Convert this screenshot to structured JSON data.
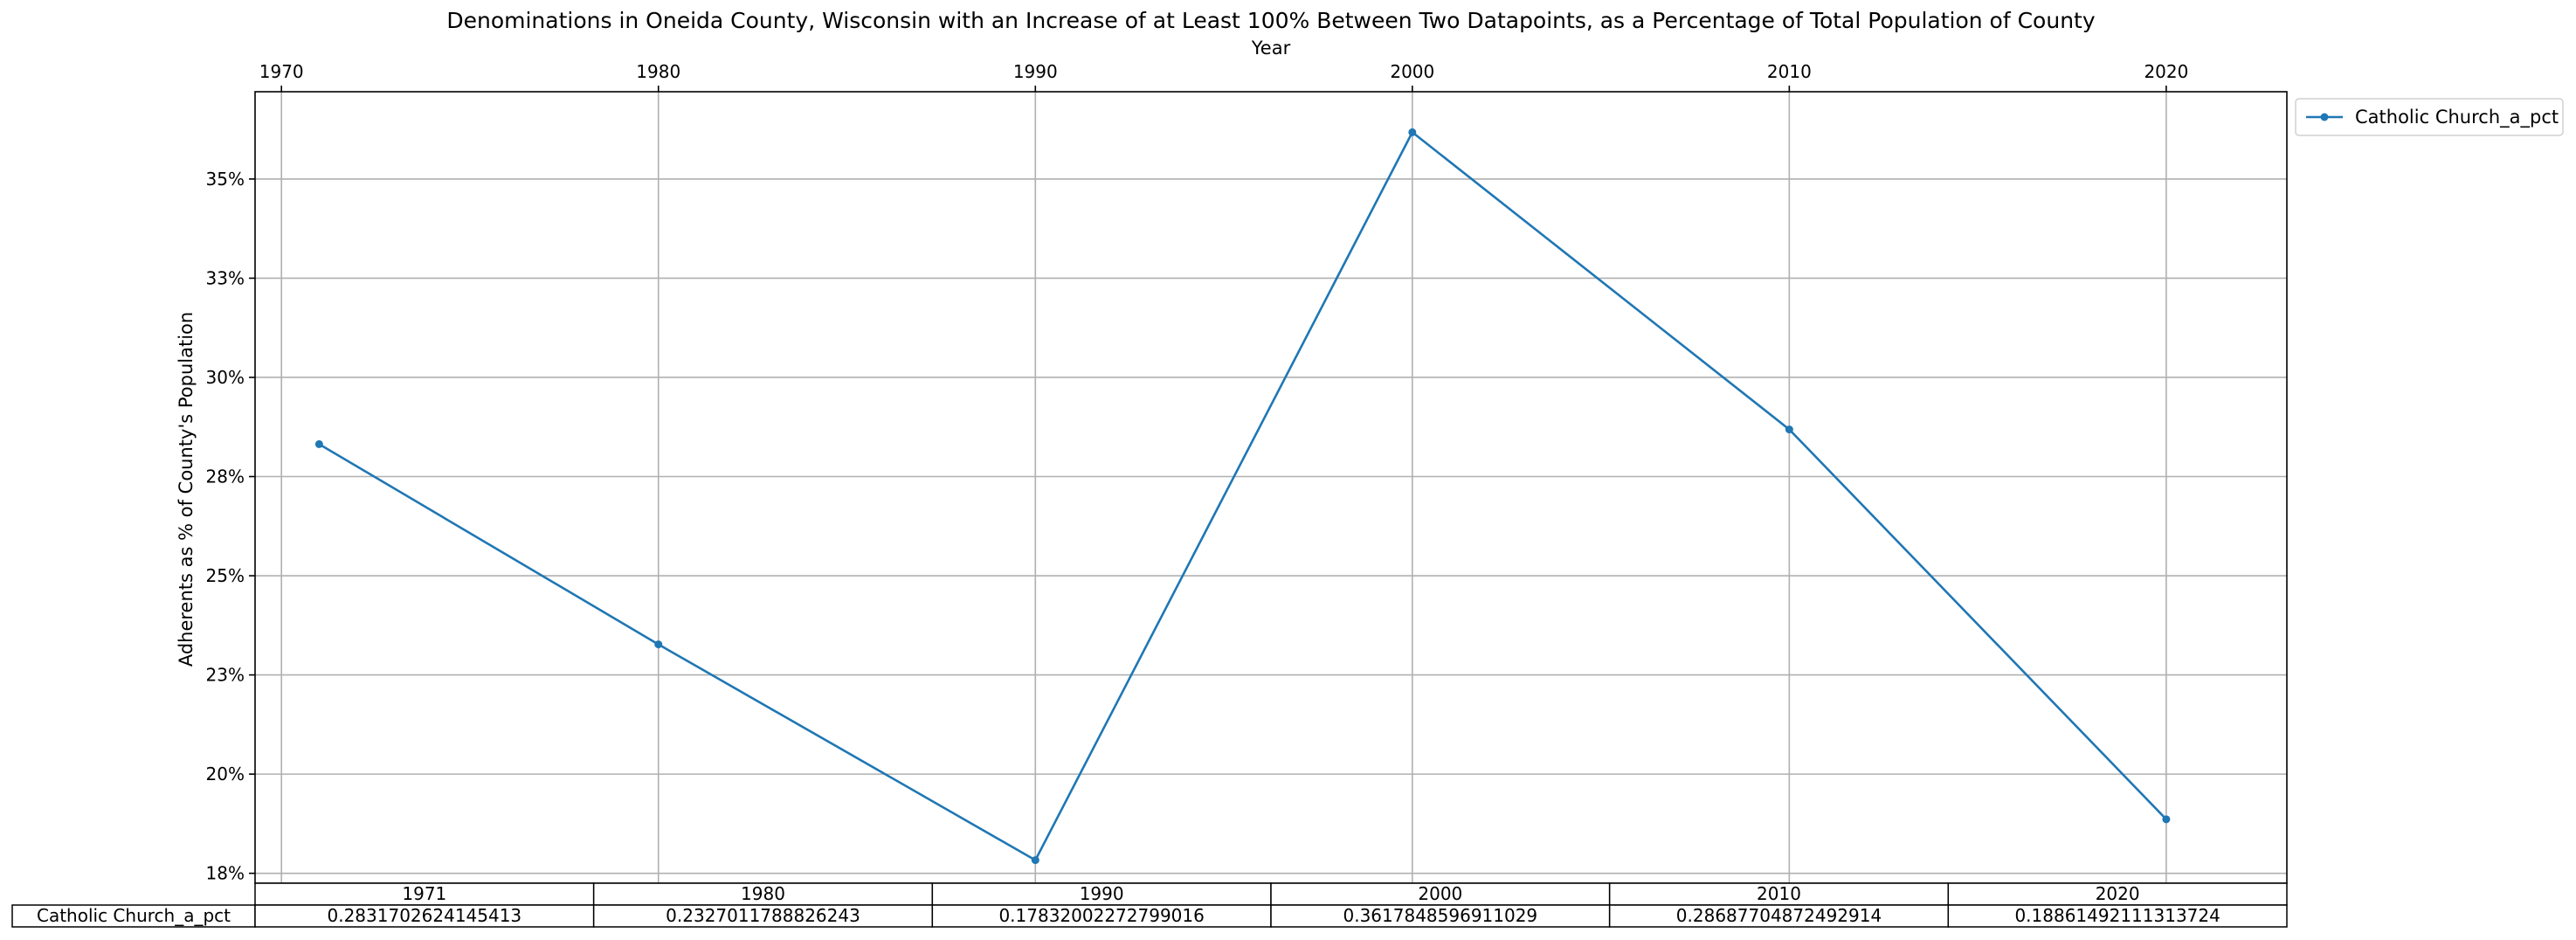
{
  "chart_data": {
    "type": "line",
    "title": "Denominations in Oneida County, Wisconsin with an Increase of at Least 100% Between Two Datapoints, as a Percentage of Total Population of County",
    "xlabel": "Year",
    "ylabel": "Adherents as % of County's Population",
    "x_axis_position": "top",
    "x_ticks": [
      1970,
      1980,
      1990,
      2000,
      2010,
      2020
    ],
    "xlim": [
      1969.3,
      2023.2
    ],
    "ylim": [
      0.1725,
      0.372
    ],
    "y_ticks": [
      0.175,
      0.2,
      0.225,
      0.25,
      0.275,
      0.3,
      0.325,
      0.35
    ],
    "y_tick_labels": [
      "18%",
      "20%",
      "23%",
      "25%",
      "28%",
      "30%",
      "33%",
      "35%"
    ],
    "grid": true,
    "legend_position": "outside-top-right",
    "series": [
      {
        "name": "Catholic Church_a_pct",
        "color": "#1f77b4",
        "marker": "dot",
        "x": [
          1971,
          1980,
          1990,
          2000,
          2010,
          2020
        ],
        "values": [
          0.2831702624145413,
          0.2327011788826243,
          0.17832002272799016,
          0.3617848596911029,
          0.28687704872492914,
          0.18861492111313724
        ]
      }
    ],
    "table": {
      "columns": [
        "1971",
        "1980",
        "1990",
        "2000",
        "2010",
        "2020"
      ],
      "rows": [
        {
          "label": "Catholic Church_a_pct",
          "cells": [
            "0.2831702624145413",
            "0.2327011788826243",
            "0.17832002272799016",
            "0.3617848596911029",
            "0.28687704872492914",
            "0.18861492111313724"
          ]
        }
      ]
    }
  }
}
